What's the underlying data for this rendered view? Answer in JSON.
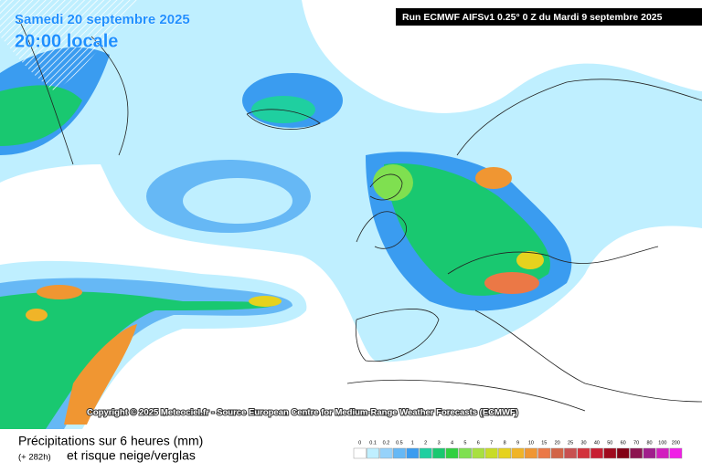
{
  "header": {
    "date": "Samedi 20 septembre 2025",
    "time": "20:00 locale",
    "run": "Run ECMWF AIFSv1 0.25° 0 Z du Mardi 9 septembre 2025"
  },
  "copyright": "Copyright © 2025 Meteociel.fr - Source European Centre for Medium-Range Weather Forecasts (ECMWF)",
  "footer": {
    "title": "Précipitations sur 6 heures (mm)",
    "lead": "(+ 282h)",
    "subtitle": "et risque neige/verglas"
  },
  "legend": {
    "labels": [
      "0",
      "0.1",
      "0.2",
      "0.5",
      "1",
      "2",
      "3",
      "4",
      "5",
      "6",
      "7",
      "8",
      "9",
      "10",
      "15",
      "20",
      "25",
      "30",
      "40",
      "50",
      "60",
      "70",
      "80",
      "100",
      "200"
    ],
    "colors": [
      "#ffffff",
      "#bfefff",
      "#96d2fa",
      "#66b8f5",
      "#3a9cf0",
      "#1fcfa0",
      "#19c870",
      "#30d040",
      "#7fe050",
      "#a8e040",
      "#c8dc28",
      "#e6d21e",
      "#f0b428",
      "#f09632",
      "#eb7846",
      "#d26446",
      "#c85050",
      "#d2323c",
      "#c81e32",
      "#a00a1e",
      "#820014",
      "#8c1450",
      "#a01e8c",
      "#d21ebe",
      "#f01ee6"
    ]
  }
}
